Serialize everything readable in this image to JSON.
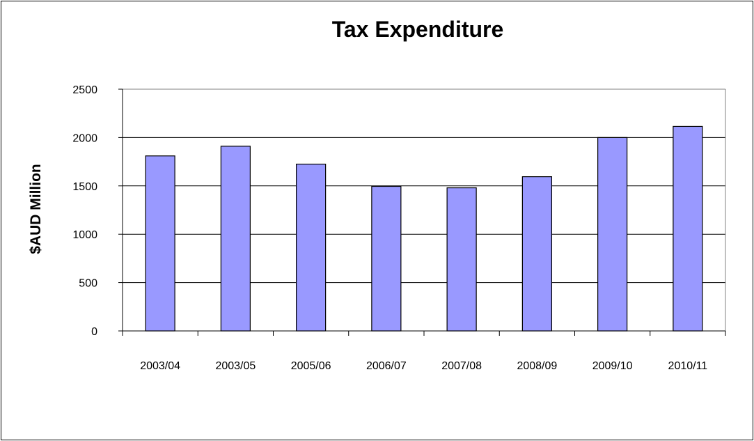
{
  "chart_data": {
    "type": "bar",
    "title": "Tax Expenditure",
    "xlabel": "",
    "ylabel": "$AUD Million",
    "categories": [
      "2003/04",
      "2003/05",
      "2005/06",
      "2006/07",
      "2007/08",
      "2008/09",
      "2009/10",
      "2010/11"
    ],
    "values": [
      1810,
      1910,
      1725,
      1495,
      1480,
      1595,
      2000,
      2115
    ],
    "ylim": [
      0,
      2500
    ],
    "yticks": [
      "0",
      "500",
      "1000",
      "1500",
      "2000",
      "2500"
    ],
    "grid": true,
    "legend": "none",
    "bar_color": "#9999FF",
    "plot_border_color": "#808080"
  }
}
